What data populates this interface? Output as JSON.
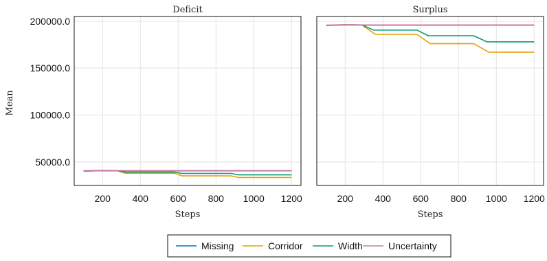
{
  "chart_data": {
    "type": "line",
    "ylabel": "Mean",
    "legend": {
      "placement": "bottom",
      "entries": [
        "Missing",
        "Corridor",
        "Width",
        "Uncertainty"
      ]
    },
    "grid": true,
    "colors": {
      "Missing": "#0072b2",
      "Corridor": "#e69f00",
      "Width": "#009e73",
      "Uncertainty": "#cc79a7"
    },
    "panels": [
      {
        "title": "Deficit",
        "xlabel": "Steps",
        "xlim": [
          50,
          1250
        ],
        "ylim": [
          25000,
          205000
        ],
        "xticks": [
          "200",
          "400",
          "600",
          "800",
          "1000",
          "1200"
        ],
        "yticks": [
          "50000.0",
          "100000.0",
          "150000.0",
          "200000.0"
        ],
        "series": [
          {
            "name": "Missing",
            "x": [
              100,
              200,
              300,
              1200
            ],
            "y": [
              40500,
              40800,
              40600,
              40600
            ]
          },
          {
            "name": "Corridor",
            "x": [
              100,
              200,
              280,
              320,
              580,
              620,
              880,
              920,
              1200
            ],
            "y": [
              40200,
              40800,
              40600,
              38000,
              38000,
              35200,
              35200,
              33500,
              33500
            ]
          },
          {
            "name": "Width",
            "x": [
              100,
              200,
              280,
              320,
              580,
              620,
              880,
              920,
              1200
            ],
            "y": [
              40300,
              40900,
              40600,
              39200,
              39200,
              37800,
              37800,
              36300,
              36300
            ]
          },
          {
            "name": "Uncertainty",
            "x": [
              100,
              200,
              300,
              1200
            ],
            "y": [
              40700,
              41000,
              40800,
              40800
            ]
          }
        ]
      },
      {
        "title": "Surplus",
        "xlabel": "Steps",
        "xlim": [
          50,
          1250
        ],
        "ylim": [
          25000,
          205000
        ],
        "xticks": [
          "200",
          "400",
          "600",
          "800",
          "1000",
          "1200"
        ],
        "yticks": [],
        "series": [
          {
            "name": "Missing",
            "x": [
              100,
              200,
              300,
              1200
            ],
            "y": [
              195500,
              196000,
              195800,
              195800
            ]
          },
          {
            "name": "Corridor",
            "x": [
              100,
              200,
              290,
              360,
              580,
              650,
              880,
              960,
              1200
            ],
            "y": [
              195500,
              196200,
              195800,
              186000,
              186000,
              176000,
              176000,
              167000,
              167000
            ]
          },
          {
            "name": "Width",
            "x": [
              100,
              200,
              290,
              350,
              580,
              640,
              880,
              950,
              1200
            ],
            "y": [
              195500,
              196200,
              196000,
              190500,
              190500,
              184500,
              184500,
              178000,
              178000
            ]
          },
          {
            "name": "Uncertainty",
            "x": [
              100,
              200,
              300,
              1200
            ],
            "y": [
              195800,
              196300,
              196000,
              196000
            ]
          }
        ]
      }
    ]
  }
}
